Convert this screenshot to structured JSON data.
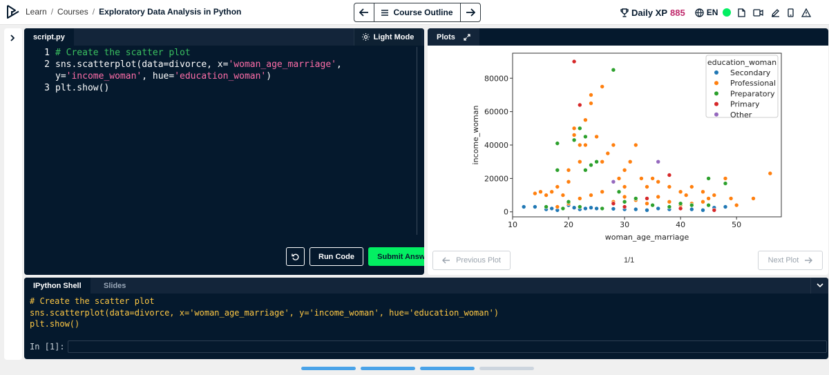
{
  "header": {
    "logo": "datacamp-logo-icon",
    "breadcrumb": [
      "Learn",
      "Courses",
      "Exploratory Data Analysis in Python"
    ],
    "course_outline_label": "Course Outline",
    "xp_label": "Daily XP",
    "xp_value": "885",
    "language": "EN",
    "icons": [
      "trophy-icon",
      "globe-icon",
      "status-online-icon",
      "document-icon",
      "video-icon",
      "pencil-icon",
      "mobile-icon",
      "warning-icon"
    ]
  },
  "script": {
    "tab": "script.py",
    "light_mode_label": "Light Mode",
    "line_numbers": [
      "1",
      "2",
      "",
      "3"
    ],
    "code": {
      "l1_comment": "# Create the scatter plot",
      "l2_a": "sns.scatterplot(data=divorce, x=",
      "l2_str1": "'woman_age_marriage'",
      "l2_b": ",",
      "l2c_a": "y=",
      "l2c_str": "'income_woman'",
      "l2c_b": ", hue=",
      "l2c_str2": "'education_woman'",
      "l2c_c": ")",
      "l3": "plt.show()"
    },
    "run_label": "Run Code",
    "submit_label": "Submit Answer"
  },
  "plots": {
    "tab": "Plots",
    "prev_label": "Previous Plot",
    "next_label": "Next Plot",
    "page": "1/1"
  },
  "chart_data": {
    "type": "scatter",
    "title": "",
    "xlabel": "woman_age_marriage",
    "ylabel": "income_woman",
    "xlim": [
      10,
      58
    ],
    "ylim": [
      -3000,
      95000
    ],
    "xticks": [
      "10",
      "20",
      "30",
      "40",
      "50"
    ],
    "yticks": [
      "0",
      "20000",
      "40000",
      "60000",
      "80000"
    ],
    "grid": false,
    "legend": {
      "title": "education_woman",
      "position": "top-right"
    },
    "series": [
      {
        "name": "Secondary",
        "color": "#1f77b4",
        "points": [
          [
            12,
            3000
          ],
          [
            14,
            3000
          ],
          [
            16,
            1500
          ],
          [
            17,
            2000
          ],
          [
            18,
            1000
          ],
          [
            20,
            4000
          ],
          [
            21,
            2500
          ],
          [
            22,
            1500
          ],
          [
            23,
            2000
          ],
          [
            24,
            2500
          ],
          [
            25,
            2000
          ],
          [
            26,
            1800
          ],
          [
            28,
            1800
          ],
          [
            30,
            1500
          ],
          [
            32,
            1500
          ],
          [
            34,
            1000
          ],
          [
            36,
            2000
          ],
          [
            38,
            1500
          ],
          [
            40,
            2000
          ],
          [
            42,
            1500
          ],
          [
            44,
            1000
          ],
          [
            46,
            2500
          ],
          [
            48,
            3000
          ]
        ]
      },
      {
        "name": "Professional",
        "color": "#ff7f0e",
        "points": [
          [
            14,
            11000
          ],
          [
            15,
            12000
          ],
          [
            16,
            10000
          ],
          [
            17,
            12000
          ],
          [
            18,
            15000
          ],
          [
            19,
            10000
          ],
          [
            20,
            18000
          ],
          [
            20,
            25000
          ],
          [
            21,
            50000
          ],
          [
            21,
            46000
          ],
          [
            22,
            40000
          ],
          [
            22,
            30000
          ],
          [
            23,
            55000
          ],
          [
            23,
            40000
          ],
          [
            24,
            70000
          ],
          [
            24,
            65000
          ],
          [
            25,
            45000
          ],
          [
            26,
            75000
          ],
          [
            26,
            30000
          ],
          [
            27,
            35000
          ],
          [
            28,
            40000
          ],
          [
            29,
            20000
          ],
          [
            30,
            25000
          ],
          [
            30,
            15000
          ],
          [
            31,
            30000
          ],
          [
            32,
            40000
          ],
          [
            33,
            20000
          ],
          [
            34,
            15000
          ],
          [
            35,
            20000
          ],
          [
            36,
            18000
          ],
          [
            38,
            15000
          ],
          [
            40,
            12000
          ],
          [
            41,
            10000
          ],
          [
            42,
            15000
          ],
          [
            44,
            12000
          ],
          [
            45,
            8000
          ],
          [
            46,
            10000
          ],
          [
            48,
            20000
          ],
          [
            49,
            8000
          ],
          [
            50,
            4000
          ],
          [
            53,
            8000
          ],
          [
            56,
            23000
          ],
          [
            18,
            3000
          ],
          [
            20,
            5000
          ],
          [
            22,
            8000
          ],
          [
            24,
            10000
          ],
          [
            26,
            12000
          ],
          [
            28,
            6000
          ],
          [
            30,
            9000
          ],
          [
            32,
            7000
          ],
          [
            34,
            5000
          ],
          [
            36,
            9000
          ],
          [
            38,
            6000
          ],
          [
            40,
            4000
          ],
          [
            42,
            5000
          ],
          [
            44,
            6000
          ]
        ]
      },
      {
        "name": "Preparatory",
        "color": "#2ca02c",
        "points": [
          [
            18,
            41000
          ],
          [
            18,
            25000
          ],
          [
            21,
            43000
          ],
          [
            22,
            50000
          ],
          [
            23,
            45000
          ],
          [
            23,
            25000
          ],
          [
            24,
            28000
          ],
          [
            25,
            30000
          ],
          [
            28,
            85000
          ],
          [
            29,
            12000
          ],
          [
            30,
            6000
          ],
          [
            32,
            8000
          ],
          [
            35,
            4000
          ],
          [
            38,
            3000
          ],
          [
            40,
            5000
          ],
          [
            42,
            4000
          ],
          [
            45,
            20000
          ],
          [
            45,
            4000
          ],
          [
            48,
            17000
          ],
          [
            20,
            6000
          ],
          [
            22,
            3000
          ],
          [
            26,
            2000
          ],
          [
            16,
            3000
          ],
          [
            19,
            2000
          ]
        ]
      },
      {
        "name": "Primary",
        "color": "#d62728",
        "points": [
          [
            21,
            90000
          ],
          [
            22,
            64000
          ],
          [
            28,
            5000
          ],
          [
            30,
            3000
          ],
          [
            34,
            8000
          ],
          [
            38,
            22000
          ],
          [
            40,
            2000
          ],
          [
            46,
            1000
          ]
        ]
      },
      {
        "name": "Other",
        "color": "#9467bd",
        "points": [
          [
            36,
            30000
          ],
          [
            28,
            18000
          ]
        ]
      }
    ]
  },
  "shell": {
    "active_tab": "IPython Shell",
    "other_tab": "Slides",
    "lines": [
      "# Create the scatter plot",
      "sns.scatterplot(data=divorce, x='woman_age_marriage', y='income_woman', hue='education_woman')",
      "plt.show()"
    ],
    "prompt": "In [1]:"
  },
  "progress": [
    "#4aa3e8",
    "#4aa3e8",
    "#4aa3e8",
    "#cdd5de"
  ]
}
